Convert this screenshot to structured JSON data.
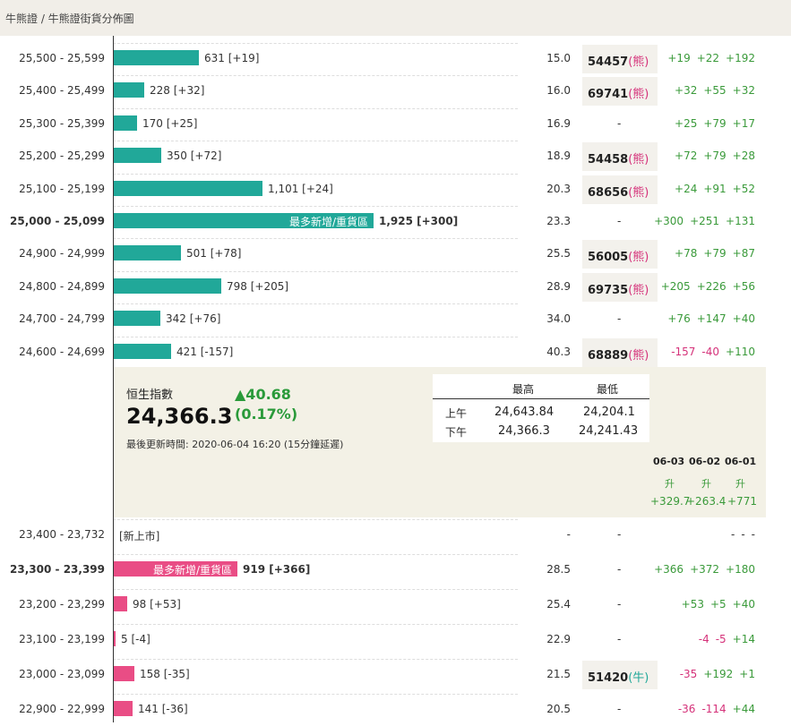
{
  "breadcrumb": "牛熊證 / 牛熊證街貨分佈圖",
  "bar_label_text": "最多新增/重貨區",
  "bear_rows": [
    {
      "range": "25,500 - 25,599",
      "qty": "631 [+19]",
      "ratio": "15.0",
      "code": "54457",
      "kind": "(熊)",
      "d1": "+19",
      "d2": "+22",
      "d3": "+192",
      "bar_pct": 0.328
    },
    {
      "range": "25,400 - 25,499",
      "qty": "228 [+32]",
      "ratio": "16.0",
      "code": "69741",
      "kind": "(熊)",
      "d1": "+32",
      "d2": "+55",
      "d3": "+32",
      "bar_pct": 0.118
    },
    {
      "range": "25,300 - 25,399",
      "qty": "170 [+25]",
      "ratio": "16.9",
      "code": "-",
      "kind": "",
      "d1": "+25",
      "d2": "+79",
      "d3": "+17",
      "bar_pct": 0.088
    },
    {
      "range": "25,200 - 25,299",
      "qty": "350 [+72]",
      "ratio": "18.9",
      "code": "54458",
      "kind": "(熊)",
      "d1": "+72",
      "d2": "+79",
      "d3": "+28",
      "bar_pct": 0.182
    },
    {
      "range": "25,100 - 25,199",
      "qty": "1,101 [+24]",
      "ratio": "20.3",
      "code": "68656",
      "kind": "(熊)",
      "d1": "+24",
      "d2": "+91",
      "d3": "+52",
      "bar_pct": 0.572
    },
    {
      "range": "25,000 - 25,099",
      "qty": "1,925 [+300]",
      "ratio": "23.3",
      "code": "-",
      "kind": "",
      "d1": "+300",
      "d2": "+251",
      "d3": "+131",
      "bar_pct": 1.0,
      "highlight": true
    },
    {
      "range": "24,900 - 24,999",
      "qty": "501 [+78]",
      "ratio": "25.5",
      "code": "56005",
      "kind": "(熊)",
      "d1": "+78",
      "d2": "+79",
      "d3": "+87",
      "bar_pct": 0.26
    },
    {
      "range": "24,800 - 24,899",
      "qty": "798 [+205]",
      "ratio": "28.9",
      "code": "69735",
      "kind": "(熊)",
      "d1": "+205",
      "d2": "+226",
      "d3": "+56",
      "bar_pct": 0.415
    },
    {
      "range": "24,700 - 24,799",
      "qty": "342 [+76]",
      "ratio": "34.0",
      "code": "-",
      "kind": "",
      "d1": "+76",
      "d2": "+147",
      "d3": "+40",
      "bar_pct": 0.178
    },
    {
      "range": "24,600 - 24,699",
      "qty": "421 [-157]",
      "ratio": "40.3",
      "code": "68889",
      "kind": "(熊)",
      "d1": "-157",
      "d2": "-40",
      "d3": "+110",
      "bar_pct": 0.219
    }
  ],
  "index": {
    "name": "恒生指數",
    "value": "24,366.3",
    "change": "▲40.68",
    "pct": "(0.17%)",
    "updated": "最後更新時間: 2020-06-04 16:20 (15分鐘延遲)",
    "high_label": "最高",
    "low_label": "最低",
    "am_label": "上午",
    "pm_label": "下午",
    "am_high": "24,643.84",
    "am_low": "24,204.1",
    "pm_high": "24,366.3",
    "pm_low": "24,241.43"
  },
  "dates": [
    {
      "date": "06-03",
      "dir": "升",
      "chg": "+329.7"
    },
    {
      "date": "06-02",
      "dir": "升",
      "chg": "+263.4"
    },
    {
      "date": "06-01",
      "dir": "升",
      "chg": "+771"
    }
  ],
  "bull_rows": [
    {
      "range": "23,400 - 23,732",
      "new_listing": "[新上市]",
      "ratio": "-",
      "code": "-",
      "kind": "",
      "d1": "-",
      "d2": "-",
      "d3": "-"
    },
    {
      "range": "23,300 - 23,399",
      "qty": "919 [+366]",
      "ratio": "28.5",
      "code": "-",
      "kind": "",
      "d1": "+366",
      "d2": "+372",
      "d3": "+180",
      "bar_pct": 1.0,
      "highlight": true
    },
    {
      "range": "23,200 - 23,299",
      "qty": "98 [+53]",
      "ratio": "25.4",
      "code": "-",
      "kind": "",
      "d1": "+53",
      "d2": "+5",
      "d3": "+40",
      "bar_pct": 0.107
    },
    {
      "range": "23,100 - 23,199",
      "qty": "5 [-4]",
      "ratio": "22.9",
      "code": "-",
      "kind": "",
      "d1": "-4",
      "d2": "-5",
      "d3": "+14",
      "bar_pct": 0.01
    },
    {
      "range": "23,000 - 23,099",
      "qty": "158 [-35]",
      "ratio": "21.5",
      "code": "51420",
      "kind": "(牛)",
      "d1": "-35",
      "d2": "+192",
      "d3": "+1",
      "bar_pct": 0.17
    },
    {
      "range": "22,900 - 22,999",
      "qty": "141 [-36]",
      "ratio": "20.5",
      "code": "-",
      "kind": "",
      "d1": "-36",
      "d2": "-114",
      "d3": "+44",
      "bar_pct": 0.152
    }
  ],
  "colors": {
    "bear": "#e94d85",
    "bull": "#21a899",
    "positive": "#3a9a3a",
    "negative": "#d5327a"
  }
}
